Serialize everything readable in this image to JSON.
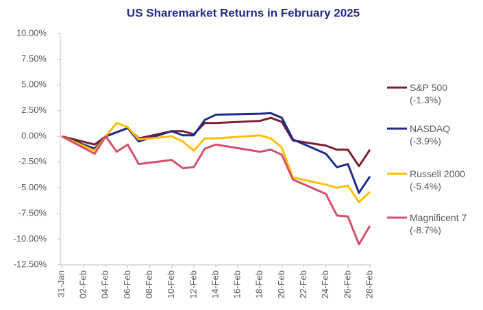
{
  "chart_data": {
    "type": "line",
    "title": "US Sharemarket Returns in February 2025",
    "x": [
      "31-Jan",
      "03-Feb",
      "04-Feb",
      "05-Feb",
      "06-Feb",
      "07-Feb",
      "10-Feb",
      "11-Feb",
      "12-Feb",
      "13-Feb",
      "14-Feb",
      "18-Feb",
      "19-Feb",
      "20-Feb",
      "21-Feb",
      "24-Feb",
      "25-Feb",
      "26-Feb",
      "27-Feb",
      "28-Feb"
    ],
    "xticks": [
      "31-Jan",
      "02-Feb",
      "04-Feb",
      "06-Feb",
      "08-Feb",
      "10-Feb",
      "12-Feb",
      "14-Feb",
      "16-Feb",
      "18-Feb",
      "20-Feb",
      "22-Feb",
      "24-Feb",
      "26-Feb",
      "28-Feb"
    ],
    "series": [
      {
        "name": "S&P 500 (-1.3%)",
        "color": "#7b1f2e",
        "values": [
          0,
          -0.8,
          0.0,
          0.4,
          0.8,
          -0.2,
          0.5,
          0.5,
          0.2,
          1.3,
          1.3,
          1.5,
          1.8,
          1.4,
          -0.4,
          -0.9,
          -1.3,
          -1.3,
          -2.9,
          -1.3
        ]
      },
      {
        "name": "NASDAQ (-3.9%)",
        "color": "#1f2a8a",
        "values": [
          0,
          -1.2,
          0.0,
          0.4,
          0.8,
          -0.5,
          0.5,
          0.1,
          0.1,
          1.6,
          2.1,
          2.2,
          2.25,
          1.8,
          -0.3,
          -1.7,
          -3.0,
          -2.7,
          -5.5,
          -3.9
        ]
      },
      {
        "name": "Russell 2000 (-5.4%)",
        "color": "#ffc000",
        "values": [
          0,
          -1.4,
          0.0,
          1.3,
          0.9,
          -0.3,
          0.0,
          -0.5,
          -1.4,
          -0.2,
          -0.2,
          0.1,
          -0.2,
          -1.1,
          -4.0,
          -4.7,
          -5.0,
          -4.8,
          -6.4,
          -5.4
        ]
      },
      {
        "name": "Magnificent 7 (-8.7%)",
        "color": "#d45068",
        "values": [
          0,
          -1.7,
          0.0,
          -1.5,
          -0.8,
          -2.7,
          -2.3,
          -3.1,
          -3.0,
          -1.2,
          -0.8,
          -1.5,
          -1.3,
          -1.8,
          -4.2,
          -5.6,
          -7.7,
          -7.8,
          -10.5,
          -8.7
        ]
      }
    ],
    "ylim": [
      -12.5,
      10
    ],
    "yticks": [
      {
        "value": 10,
        "label": "10.00%"
      },
      {
        "value": 7.5,
        "label": "7.50%"
      },
      {
        "value": 5,
        "label": "5.00%"
      },
      {
        "value": 2.5,
        "label": "2.50%"
      },
      {
        "value": 0,
        "label": "0.00%"
      },
      {
        "value": -2.5,
        "label": "-2.50%"
      },
      {
        "value": -5,
        "label": "-5.00%"
      },
      {
        "value": -7.5,
        "label": "-7.50%"
      },
      {
        "value": -10,
        "label": "-10.00%"
      },
      {
        "value": -12.5,
        "label": "-12.50%"
      }
    ],
    "legend": "right",
    "grid": false
  }
}
